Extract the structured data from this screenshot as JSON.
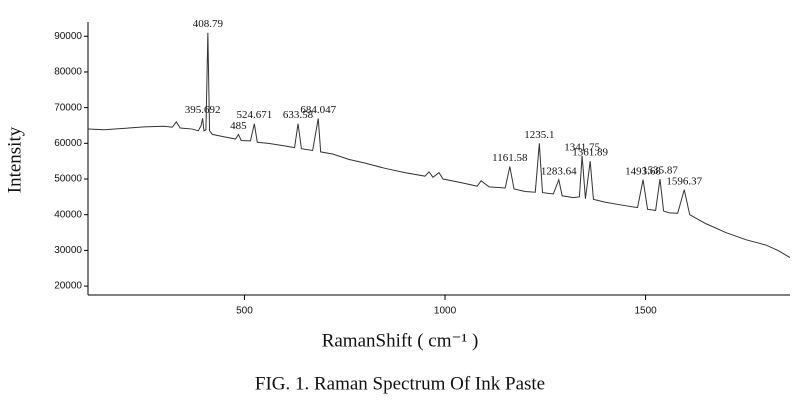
{
  "chart_data": {
    "type": "line",
    "caption": "FIG. 1. Raman Spectrum Of Ink Paste",
    "x_label": "RamanShift ( cm⁻¹ )",
    "y_label": "Intensity",
    "color": "#333333",
    "x": [
      110,
      150,
      200,
      250,
      300,
      320,
      330,
      340,
      370,
      385,
      392,
      395.692,
      399,
      404,
      408.79,
      413,
      420,
      450,
      478,
      485,
      492,
      515,
      524.671,
      532,
      560,
      600,
      625,
      633.58,
      642,
      670,
      684.047,
      690,
      720,
      760,
      800,
      850,
      900,
      950,
      960,
      970,
      985,
      995,
      1040,
      1080,
      1090,
      1110,
      1150,
      1161.58,
      1172,
      1200,
      1225,
      1235.1,
      1243,
      1270,
      1283.64,
      1292,
      1320,
      1335,
      1341.75,
      1350,
      1361.89,
      1370,
      1400,
      1440,
      1480,
      1493.68,
      1505,
      1525,
      1535.87,
      1545,
      1560,
      1580,
      1596.37,
      1610,
      1650,
      1700,
      1750,
      1800,
      1830,
      1860
    ],
    "values": [
      64000,
      63800,
      64200,
      64600,
      64800,
      64500,
      66000,
      64300,
      64000,
      63500,
      65000,
      67000,
      63500,
      63800,
      91000,
      63500,
      62500,
      61800,
      61200,
      62500,
      60800,
      60700,
      65500,
      60300,
      60000,
      59300,
      58800,
      65500,
      58500,
      58000,
      67000,
      57600,
      57000,
      55500,
      54500,
      53000,
      51800,
      50800,
      52000,
      50500,
      51800,
      50000,
      49000,
      48000,
      49500,
      47800,
      47500,
      53500,
      47200,
      46500,
      46300,
      60000,
      46200,
      45800,
      49800,
      45300,
      44800,
      45000,
      56500,
      44500,
      55000,
      44300,
      43500,
      42700,
      42000,
      49800,
      41500,
      41200,
      50000,
      41000,
      40500,
      40400,
      47000,
      40000,
      37500,
      35000,
      33000,
      31500,
      30000,
      28000
    ],
    "peak_labels": [
      {
        "value": 408.79,
        "label": "408.79"
      },
      {
        "value": 395.692,
        "label": "395.692"
      },
      {
        "value": 485,
        "label": "485"
      },
      {
        "value": 524.671,
        "label": "524.671"
      },
      {
        "value": 633.58,
        "label": "633.58"
      },
      {
        "value": 684.047,
        "label": "684.047"
      },
      {
        "value": 1161.58,
        "label": "1161.58"
      },
      {
        "value": 1235.1,
        "label": "1235.1"
      },
      {
        "value": 1283.64,
        "label": "1283.64"
      },
      {
        "value": 1341.75,
        "label": "1341.75"
      },
      {
        "value": 1361.89,
        "label": "1361.89"
      },
      {
        "value": 1493.68,
        "label": "1493.68"
      },
      {
        "value": 1535.87,
        "label": "1535.87"
      },
      {
        "value": 1596.37,
        "label": "1596.37"
      }
    ],
    "xlim": [
      110,
      1860
    ],
    "ylim": [
      17500,
      94000
    ],
    "xticks": [
      500,
      1000,
      1500
    ],
    "yticks": [
      20000,
      30000,
      40000,
      50000,
      60000,
      70000,
      80000,
      90000
    ]
  }
}
